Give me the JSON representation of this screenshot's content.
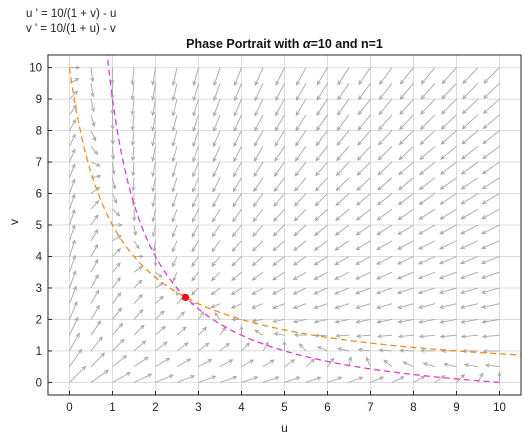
{
  "equations": {
    "line1": "u ' = 10/(1 + v) - u",
    "line2": "v ' = 10/(1 + u) - v"
  },
  "chart_data": {
    "type": "scatter",
    "title_prefix": "Phase Portrait with ",
    "title_symbol": "α",
    "title_suffix": "=10 and n=1",
    "xlabel": "u",
    "ylabel": "v",
    "xlim": [
      -0.5,
      10.5
    ],
    "ylim": [
      -0.4,
      10.4
    ],
    "xticks": [
      "0",
      "1",
      "2",
      "3",
      "4",
      "5",
      "6",
      "7",
      "8",
      "9",
      "10"
    ],
    "yticks": [
      "0",
      "1",
      "2",
      "3",
      "4",
      "5",
      "6",
      "7",
      "8",
      "9",
      "10"
    ],
    "grid": true,
    "params": {
      "alpha": 10,
      "n": 1
    },
    "vector_field": {
      "u_range": [
        0,
        10
      ],
      "v_range": [
        0,
        10
      ],
      "step": 0.5
    },
    "series": [
      {
        "type": "line",
        "style": "dashed",
        "color": "#f08c1e",
        "u_from": 0,
        "u_to": 10.5
      },
      {
        "type": "line",
        "style": "dashed",
        "color": "#e23ad8",
        "v_from": 0,
        "v_to": 10.5
      }
    ],
    "fixed_point": {
      "u": 2.7,
      "v": 2.7,
      "color": "#ee1111"
    }
  },
  "colors": {
    "arrows": "#a6a6a6",
    "grid": "#dcdcdc",
    "axes": "#262626"
  }
}
